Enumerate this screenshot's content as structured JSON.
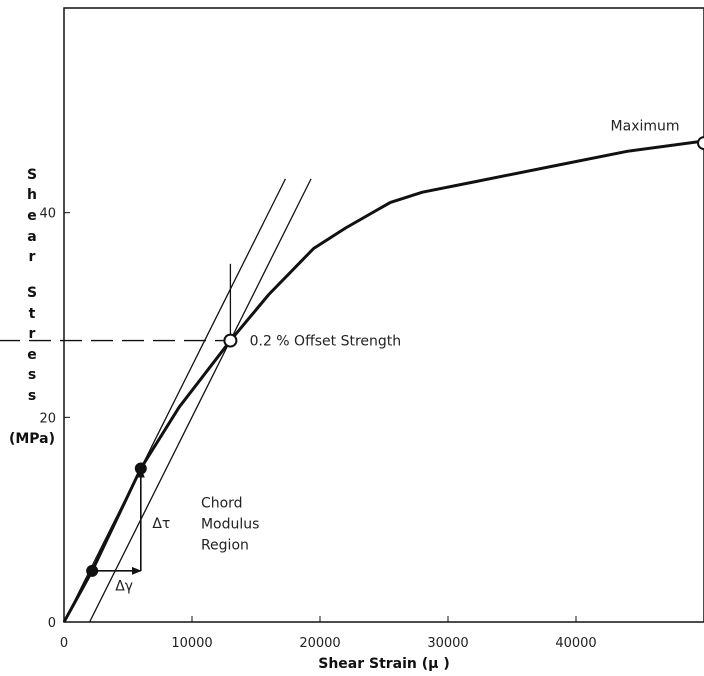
{
  "chart_data": {
    "type": "line",
    "xlabel": "Shear Strain (μ )",
    "ylabel_letters": [
      "S",
      "h",
      "e",
      "a",
      "r",
      "S",
      "t",
      "r",
      "e",
      "s",
      "s"
    ],
    "ylabel_unit": "(MPa)",
    "xlim": [
      0,
      50000
    ],
    "ylim": [
      0,
      60
    ],
    "x_ticks": [
      0,
      10000,
      20000,
      30000,
      40000
    ],
    "x_tick_labels": [
      "0",
      "10000",
      "20000",
      "30000",
      "40000"
    ],
    "y_ticks": [
      0,
      20,
      40
    ],
    "y_tick_labels": [
      "0",
      "20",
      "40"
    ],
    "grid": false,
    "series": [
      {
        "x": [
          0,
          2200,
          6000,
          9000,
          13000,
          16000,
          19500,
          22000,
          25500,
          28000,
          32000,
          38000,
          44000,
          50000
        ],
        "y": [
          0,
          5,
          15,
          21,
          27.5,
          32,
          36.5,
          38.5,
          41,
          42,
          43,
          44.5,
          46,
          47
        ]
      }
    ],
    "reference_lines": [
      {
        "x": [
          0,
          17300
        ],
        "y": [
          0,
          43.3
        ]
      },
      {
        "x": [
          2000,
          19300
        ],
        "y": [
          0,
          43.3
        ]
      },
      {
        "x": [
          -10000,
          13000
        ],
        "y": [
          27.5,
          27.5
        ],
        "dashed": true
      },
      {
        "x": [
          13000,
          13000
        ],
        "y": [
          27.5,
          35
        ]
      },
      {
        "x": [
          2200,
          6000
        ],
        "y": [
          5,
          5
        ]
      },
      {
        "x": [
          6000,
          6000
        ],
        "y": [
          5,
          15
        ]
      }
    ],
    "points": [
      {
        "x": 2200,
        "y": 5,
        "filled": true
      },
      {
        "x": 6000,
        "y": 15,
        "filled": true
      },
      {
        "x": 13000,
        "y": 27.5,
        "filled": false
      },
      {
        "x": 50000,
        "y": 46.8,
        "filled": false
      }
    ],
    "annotations": {
      "offset": {
        "text": "0.2 % Offset Strength",
        "x": 14500,
        "y": 27.5
      },
      "maximum": {
        "text": "Maximum",
        "x": 42700,
        "y": 48.5
      },
      "chord": {
        "lines": [
          "Chord",
          "Modulus",
          "Region"
        ],
        "x": 10700,
        "y": 11.2
      },
      "delta_tau": {
        "text": "Δτ",
        "x": 6900,
        "y": 9.2
      },
      "delta_gamma": {
        "text": "Δγ",
        "x": 4000,
        "y": 3.1
      }
    }
  }
}
